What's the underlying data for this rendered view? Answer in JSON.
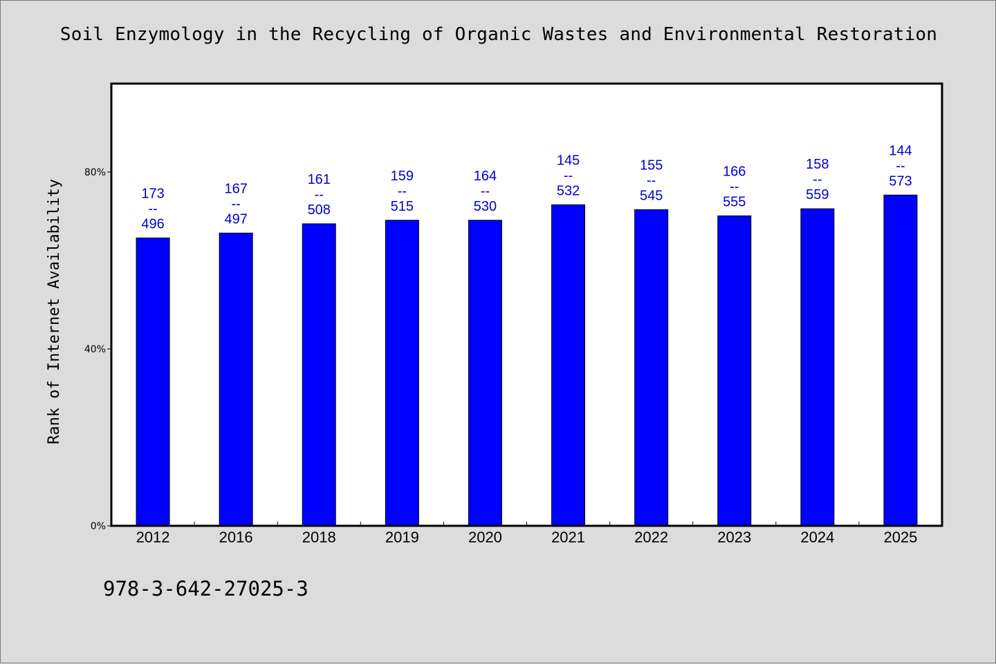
{
  "chart_data": {
    "type": "bar",
    "title": "Soil Enzymology in the Recycling of Organic Wastes and Environmental Restoration",
    "ylabel": "Rank of Internet Availability",
    "xlabel": "",
    "ylim": [
      0,
      100
    ],
    "y_ticks": [
      {
        "value": 0,
        "label": "0%"
      },
      {
        "value": 40,
        "label": "40%"
      },
      {
        "value": 80,
        "label": "80%"
      }
    ],
    "grid": false,
    "bar_color": "#0000ff",
    "label_color": "#0000cc",
    "categories": [
      "2012",
      "2016",
      "2018",
      "2019",
      "2020",
      "2021",
      "2022",
      "2023",
      "2024",
      "2025"
    ],
    "values": [
      65.1,
      66.2,
      68.3,
      69.1,
      69.1,
      72.6,
      71.5,
      70.1,
      71.7,
      74.8
    ],
    "data_labels": [
      {
        "top": "173",
        "sep": "--",
        "bottom": "496"
      },
      {
        "top": "167",
        "sep": "--",
        "bottom": "497"
      },
      {
        "top": "161",
        "sep": "--",
        "bottom": "508"
      },
      {
        "top": "159",
        "sep": "--",
        "bottom": "515"
      },
      {
        "top": "164",
        "sep": "--",
        "bottom": "530"
      },
      {
        "top": "145",
        "sep": "--",
        "bottom": "532"
      },
      {
        "top": "155",
        "sep": "--",
        "bottom": "545"
      },
      {
        "top": "166",
        "sep": "--",
        "bottom": "555"
      },
      {
        "top": "158",
        "sep": "--",
        "bottom": "559"
      },
      {
        "top": "144",
        "sep": "--",
        "bottom": "573"
      }
    ]
  },
  "footer": {
    "isbn": "978-3-642-27025-3"
  }
}
